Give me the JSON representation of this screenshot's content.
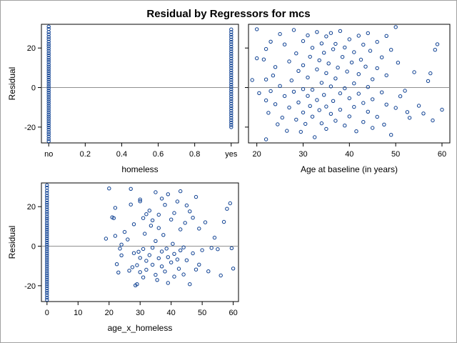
{
  "title": "Residual by Regressors for mcs",
  "colors": {
    "marker": "#0b3e91",
    "reference": "#909090",
    "axis": "#000000",
    "frame": "#a0a0a0"
  },
  "chart_data": [
    {
      "type": "scatter",
      "xlabel": "homeless",
      "ylabel": "Residual",
      "x_ticks": [
        {
          "value": 0,
          "label": "no"
        },
        {
          "value": 0.2,
          "label": "0.2"
        },
        {
          "value": 0.4,
          "label": "0.4"
        },
        {
          "value": 0.6,
          "label": "0.6"
        },
        {
          "value": 0.8,
          "label": "0.8"
        },
        {
          "value": 1,
          "label": "yes"
        }
      ],
      "y_ticks": [
        -20,
        0,
        20
      ],
      "xlim": [
        -0.04,
        1.04
      ],
      "ylim": [
        -28,
        32
      ],
      "reference_line_y": 0,
      "series": [
        {
          "x": 0,
          "y_values": [
            30.8,
            29.6,
            28.1,
            26.9,
            25.6,
            24.5,
            23.2,
            22.0,
            20.9,
            19.7,
            18.6,
            17.4,
            16.3,
            15.1,
            14.0,
            12.9,
            11.7,
            10.6,
            9.5,
            8.4,
            7.3,
            6.2,
            5.1,
            4.0,
            2.9,
            1.8,
            0.7,
            -0.4,
            -1.5,
            -2.6,
            -3.7,
            -4.8,
            -5.9,
            -7.0,
            -8.1,
            -9.2,
            -10.3,
            -11.4,
            -12.5,
            -13.6,
            -14.7,
            -15.8,
            -16.9,
            -18.0,
            -19.1,
            -20.2,
            -21.3,
            -22.5,
            -23.6,
            -24.8,
            -26.0,
            -27.1
          ]
        },
        {
          "x": 1,
          "y_values": [
            29.4,
            28.1,
            26.8,
            25.6,
            24.3,
            23.1,
            21.9,
            20.7,
            19.5,
            18.3,
            17.1,
            15.9,
            14.7,
            13.5,
            12.3,
            11.1,
            9.9,
            8.7,
            7.5,
            6.3,
            5.1,
            3.9,
            2.7,
            1.5,
            0.3,
            -0.9,
            -2.1,
            -3.3,
            -4.5,
            -5.7,
            -6.9,
            -8.1,
            -9.3,
            -10.5,
            -11.7,
            -12.9,
            -14.1,
            -15.3,
            -16.5,
            -17.7,
            -18.9,
            -20.0
          ]
        }
      ]
    },
    {
      "type": "scatter",
      "xlabel": "Age at baseline (in years)",
      "ylabel": "",
      "x_ticks": [
        {
          "value": 20,
          "label": "20"
        },
        {
          "value": 30,
          "label": "30"
        },
        {
          "value": 40,
          "label": "40"
        },
        {
          "value": 50,
          "label": "50"
        },
        {
          "value": 60,
          "label": "60"
        }
      ],
      "y_ticks": [
        -20,
        0,
        20
      ],
      "xlim": [
        18.2,
        61.7
      ],
      "ylim": [
        -28,
        32
      ],
      "reference_line_y": 0,
      "points": [
        [
          20,
          29.5
        ],
        [
          20,
          14.8
        ],
        [
          19,
          3.8
        ],
        [
          20.5,
          -2.8
        ],
        [
          22,
          19.5
        ],
        [
          22,
          -6.5
        ],
        [
          22,
          -26.2
        ],
        [
          21.5,
          14.2
        ],
        [
          22,
          4.1
        ],
        [
          23,
          -1.8
        ],
        [
          22.5,
          -12.8
        ],
        [
          23,
          23.2
        ],
        [
          23.5,
          6.1
        ],
        [
          24,
          10.4
        ],
        [
          24,
          -8.4
        ],
        [
          24.5,
          -18.6
        ],
        [
          25,
          27.1
        ],
        [
          25,
          0.8
        ],
        [
          25.5,
          -15.2
        ],
        [
          26,
          21.8
        ],
        [
          26,
          -4.3
        ],
        [
          26.5,
          -21.9
        ],
        [
          27,
          13.2
        ],
        [
          27,
          -10.1
        ],
        [
          27.5,
          3.6
        ],
        [
          28,
          29.1
        ],
        [
          28,
          -2.1
        ],
        [
          28.5,
          17.3
        ],
        [
          28.5,
          -16.2
        ],
        [
          29,
          8.4
        ],
        [
          29,
          -7.5
        ],
        [
          29.5,
          -22.4
        ],
        [
          30,
          23.5
        ],
        [
          30,
          11.3
        ],
        [
          30,
          -0.8
        ],
        [
          30,
          -12.6
        ],
        [
          30.5,
          -18.4
        ],
        [
          31,
          26.4
        ],
        [
          31,
          5.1
        ],
        [
          31,
          -4.2
        ],
        [
          31.5,
          15.6
        ],
        [
          31.5,
          -9.3
        ],
        [
          32,
          20.1
        ],
        [
          32,
          -1.1
        ],
        [
          32,
          -14.7
        ],
        [
          32.5,
          -25.1
        ],
        [
          33,
          28.1
        ],
        [
          33,
          9.2
        ],
        [
          33,
          -6.3
        ],
        [
          33.5,
          13.8
        ],
        [
          33.5,
          -11.4
        ],
        [
          34,
          22.3
        ],
        [
          34,
          2.4
        ],
        [
          34,
          -18.1
        ],
        [
          34.5,
          17.6
        ],
        [
          34.5,
          -3.7
        ],
        [
          35,
          25.9
        ],
        [
          35,
          7.3
        ],
        [
          35,
          -9.6
        ],
        [
          35,
          -20.9
        ],
        [
          35.5,
          12.2
        ],
        [
          36,
          27.6
        ],
        [
          36,
          0.6
        ],
        [
          36,
          -13.3
        ],
        [
          36.5,
          19.4
        ],
        [
          36.5,
          -6.8
        ],
        [
          37,
          22.1
        ],
        [
          37,
          4.6
        ],
        [
          37,
          -16.8
        ],
        [
          37.5,
          10.1
        ],
        [
          38,
          28.6
        ],
        [
          38,
          -2.9
        ],
        [
          38,
          -11.2
        ],
        [
          38.5,
          15.5
        ],
        [
          39,
          20.3
        ],
        [
          39,
          -0.4
        ],
        [
          39,
          -19.2
        ],
        [
          39.5,
          8.1
        ],
        [
          40,
          24.4
        ],
        [
          40,
          -5.4
        ],
        [
          40,
          -14.6
        ],
        [
          40.5,
          12.7
        ],
        [
          41,
          17.9
        ],
        [
          41,
          2.1
        ],
        [
          41,
          -9.8
        ],
        [
          41.5,
          -22.1
        ],
        [
          42,
          26.2
        ],
        [
          42,
          6.8
        ],
        [
          42,
          -3.1
        ],
        [
          42.5,
          14.1
        ],
        [
          43,
          21.7
        ],
        [
          43,
          -7.8
        ],
        [
          43,
          -17.4
        ],
        [
          43.5,
          10.6
        ],
        [
          44,
          27.5
        ],
        [
          44,
          0.3
        ],
        [
          44,
          -12.2
        ],
        [
          44.5,
          18.6
        ],
        [
          45,
          4.2
        ],
        [
          45,
          -5.9
        ],
        [
          45,
          -20.4
        ],
        [
          46,
          23.1
        ],
        [
          46,
          9.8
        ],
        [
          46,
          -14.8
        ],
        [
          47,
          15.3
        ],
        [
          47,
          -2.4
        ],
        [
          47.5,
          -18.7
        ],
        [
          48,
          26.1
        ],
        [
          48,
          6.2
        ],
        [
          48,
          -8.6
        ],
        [
          49,
          19.1
        ],
        [
          49,
          -23.9
        ],
        [
          50,
          30.6
        ],
        [
          50,
          -10.3
        ],
        [
          50.5,
          12.6
        ],
        [
          51,
          -4.4
        ],
        [
          52,
          -1.6
        ],
        [
          53,
          -15.3
        ],
        [
          54,
          7.8
        ],
        [
          55,
          -9.2
        ],
        [
          56,
          -13.1
        ],
        [
          57,
          3.3
        ],
        [
          58,
          -16.6
        ],
        [
          58.5,
          19.1
        ],
        [
          59,
          21.9
        ],
        [
          60,
          -11.2
        ],
        [
          57.5,
          7.2
        ],
        [
          52.5,
          -12.4
        ]
      ]
    },
    {
      "type": "scatter",
      "xlabel": "age_x_homeless",
      "ylabel": "Residual",
      "x_ticks": [
        {
          "value": 0,
          "label": "0"
        },
        {
          "value": 10,
          "label": "10"
        },
        {
          "value": 20,
          "label": "20"
        },
        {
          "value": 30,
          "label": "30"
        },
        {
          "value": 40,
          "label": "40"
        },
        {
          "value": 50,
          "label": "50"
        },
        {
          "value": 60,
          "label": "60"
        }
      ],
      "y_ticks": [
        -20,
        0,
        20
      ],
      "xlim": [
        -1.8,
        61.7
      ],
      "ylim": [
        -28,
        32
      ],
      "reference_line_y": 0,
      "vertical_series": {
        "x": 0,
        "y_values": [
          30.8,
          29.6,
          28.1,
          26.9,
          25.6,
          24.5,
          23.2,
          22.0,
          20.9,
          19.7,
          18.6,
          17.4,
          16.3,
          15.1,
          14.0,
          12.9,
          11.7,
          10.6,
          9.5,
          8.4,
          7.3,
          6.2,
          5.1,
          4.0,
          2.9,
          1.8,
          0.7,
          -0.4,
          -1.5,
          -2.6,
          -3.7,
          -4.8,
          -5.9,
          -7.0,
          -8.1,
          -9.2,
          -10.3,
          -11.4,
          -12.5,
          -13.6,
          -14.7,
          -15.8,
          -16.9,
          -18.0,
          -19.1,
          -20.2,
          -21.3,
          -22.5,
          -23.6,
          -24.8,
          -26.0,
          -27.1
        ]
      },
      "points": [
        [
          20,
          29.2
        ],
        [
          19,
          3.8
        ],
        [
          21,
          14.6
        ],
        [
          21.5,
          14.2
        ],
        [
          22,
          19.4
        ],
        [
          22,
          5.2
        ],
        [
          22.5,
          -9.1
        ],
        [
          23,
          -13.3
        ],
        [
          23.5,
          -1.2
        ],
        [
          24,
          -4.6
        ],
        [
          24,
          0.8
        ],
        [
          25,
          7.2
        ],
        [
          26,
          3.4
        ],
        [
          26.5,
          -12.4
        ],
        [
          27,
          29.0
        ],
        [
          27,
          21.1
        ],
        [
          27.5,
          -10.6
        ],
        [
          28,
          -3.5
        ],
        [
          28,
          11.1
        ],
        [
          28.5,
          -19.8
        ],
        [
          29,
          -19.2
        ],
        [
          29,
          -9.6
        ],
        [
          29.5,
          -2.8
        ],
        [
          30,
          22.7
        ],
        [
          30,
          23.6
        ],
        [
          30,
          -5.9
        ],
        [
          30,
          -13.1
        ],
        [
          31,
          14.2
        ],
        [
          31,
          -1.4
        ],
        [
          31,
          -15.8
        ],
        [
          31.5,
          6.3
        ],
        [
          32,
          16.2
        ],
        [
          32,
          -7.4
        ],
        [
          32,
          -11.9
        ],
        [
          33,
          18.0
        ],
        [
          33,
          -4.5
        ],
        [
          33.5,
          10.4
        ],
        [
          34,
          13.1
        ],
        [
          34,
          -0.8
        ],
        [
          34,
          -9.4
        ],
        [
          35,
          27.3
        ],
        [
          35,
          2.6
        ],
        [
          35,
          -14.5
        ],
        [
          35.5,
          -17.1
        ],
        [
          36,
          9.2
        ],
        [
          36,
          -6.1
        ],
        [
          36,
          15.9
        ],
        [
          37,
          24.1
        ],
        [
          37,
          -2.7
        ],
        [
          37,
          -10.2
        ],
        [
          37.5,
          5.7
        ],
        [
          38,
          20.9
        ],
        [
          38,
          -12.8
        ],
        [
          38.5,
          -1.2
        ],
        [
          39,
          26.3
        ],
        [
          39,
          -5.5
        ],
        [
          39,
          -18.6
        ],
        [
          40,
          13.5
        ],
        [
          40,
          -8.2
        ],
        [
          40.5,
          1.2
        ],
        [
          41,
          16.8
        ],
        [
          41,
          -3.9
        ],
        [
          41,
          -15.4
        ],
        [
          42,
          22.6
        ],
        [
          42,
          -6.7
        ],
        [
          42.5,
          -11.4
        ],
        [
          43,
          27.8
        ],
        [
          43,
          8.5
        ],
        [
          43,
          -2.1
        ],
        [
          44,
          -0.6
        ],
        [
          44,
          -14.3
        ],
        [
          44.5,
          11.8
        ],
        [
          45,
          20.6
        ],
        [
          45,
          -7.1
        ],
        [
          46,
          17.6
        ],
        [
          46,
          -19.2
        ],
        [
          47,
          -3.6
        ],
        [
          47,
          14.4
        ],
        [
          48,
          24.9
        ],
        [
          48,
          -11.8
        ],
        [
          49,
          -9.3
        ],
        [
          49,
          8.9
        ],
        [
          50,
          -2.0
        ],
        [
          51,
          12.1
        ],
        [
          52,
          -12.7
        ],
        [
          53,
          -0.9
        ],
        [
          54,
          4.3
        ],
        [
          55,
          -1.5
        ],
        [
          56,
          -14.8
        ],
        [
          57,
          12.3
        ],
        [
          58,
          18.9
        ],
        [
          59,
          21.7
        ],
        [
          59.5,
          -1.0
        ],
        [
          60,
          -11.3
        ]
      ]
    }
  ]
}
